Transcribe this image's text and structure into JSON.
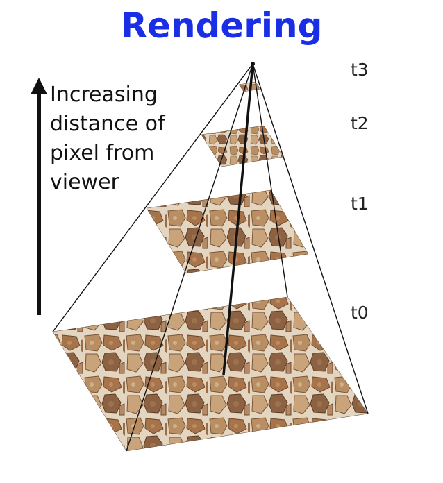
{
  "title": "Rendering",
  "caption": {
    "lines": [
      "Increasing",
      "distance of",
      "pixel from",
      "viewer"
    ]
  },
  "levels": [
    {
      "label": "t3"
    },
    {
      "label": "t2"
    },
    {
      "label": "t1"
    },
    {
      "label": "t0"
    }
  ],
  "colors": {
    "title": "#1a2ee6",
    "stone_light": "#c9a47a",
    "stone_dark": "#6b4a2e",
    "mortar": "#e8dccb"
  },
  "icons": {
    "arrow": "up-arrow-icon"
  }
}
